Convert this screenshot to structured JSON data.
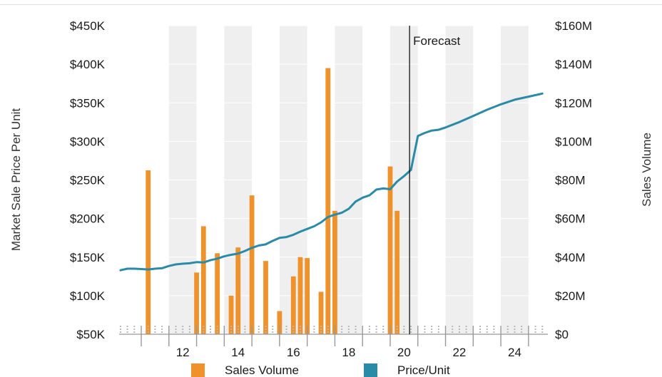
{
  "chart_data": {
    "type": "bar",
    "y_left_label": "Market Sale Price Per Unit",
    "y_right_label": "Sales Volume",
    "y_left_ticks": [
      "$50K",
      "$100K",
      "$150K",
      "$200K",
      "$250K",
      "$300K",
      "$350K",
      "$400K",
      "$450K"
    ],
    "y_left_tick_values": [
      50000,
      100000,
      150000,
      200000,
      250000,
      300000,
      350000,
      400000,
      450000
    ],
    "y_right_ticks": [
      "$0",
      "$20M",
      "$40M",
      "$60M",
      "$80M",
      "$100M",
      "$120M",
      "$140M",
      "$160M"
    ],
    "y_right_tick_values": [
      0,
      20000000,
      40000000,
      60000000,
      80000000,
      100000000,
      120000000,
      140000000,
      160000000
    ],
    "x_ticks": [
      "12",
      "14",
      "16",
      "18",
      "20",
      "22",
      "24"
    ],
    "x_tick_values": [
      2012,
      2014,
      2016,
      2018,
      2020,
      2022,
      2024
    ],
    "xlim": [
      2010.2,
      2025.7
    ],
    "ylim_left": [
      50000,
      450000
    ],
    "ylim_right": [
      0,
      160000000
    ],
    "forecast_label": "Forecast",
    "forecast_x": 2020.7,
    "colors": {
      "bars": "#F0922B",
      "line": "#2A8BA8",
      "band": "#EFEFEF",
      "axis": "#999999"
    },
    "legend": [
      {
        "label": "Sales Volume",
        "color": "#F0922B"
      },
      {
        "label": "Price/Unit",
        "color": "#2A8BA8"
      }
    ],
    "series": [
      {
        "name": "Sales Volume",
        "type": "bar",
        "axis": "right",
        "x": [
          2011.25,
          2013.0,
          2013.25,
          2013.75,
          2014.25,
          2014.5,
          2015.0,
          2015.5,
          2016.0,
          2016.5,
          2016.75,
          2017.0,
          2017.5,
          2017.75,
          2018.0,
          2020.0,
          2020.25
        ],
        "values": [
          85000000,
          32000000,
          56000000,
          42000000,
          20000000,
          45000000,
          72000000,
          38000000,
          12000000,
          30000000,
          40000000,
          39500000,
          22000000,
          138000000,
          64000000,
          87000000,
          64000000
        ]
      },
      {
        "name": "Price/Unit",
        "type": "line",
        "axis": "left",
        "x": [
          2010.25,
          2010.5,
          2010.75,
          2011.0,
          2011.25,
          2011.5,
          2011.75,
          2012.0,
          2012.25,
          2012.5,
          2012.75,
          2013.0,
          2013.25,
          2013.5,
          2013.75,
          2014.0,
          2014.25,
          2014.5,
          2014.75,
          2015.0,
          2015.25,
          2015.5,
          2015.75,
          2016.0,
          2016.25,
          2016.5,
          2016.75,
          2017.0,
          2017.25,
          2017.5,
          2017.75,
          2018.0,
          2018.25,
          2018.5,
          2018.75,
          2019.0,
          2019.25,
          2019.5,
          2019.75,
          2020.0,
          2020.25,
          2020.5,
          2020.75,
          2021.0,
          2021.25,
          2021.5,
          2021.75,
          2022.0,
          2022.5,
          2023.0,
          2023.5,
          2024.0,
          2024.5,
          2025.0,
          2025.5
        ],
        "values": [
          133000,
          135000,
          135000,
          134500,
          134000,
          135000,
          135500,
          138500,
          140500,
          141500,
          142000,
          143500,
          143000,
          146000,
          148000,
          151000,
          153000,
          154500,
          158000,
          162000,
          165000,
          166500,
          171000,
          175000,
          176000,
          179000,
          183000,
          186500,
          190000,
          195000,
          202000,
          205000,
          207500,
          212500,
          222000,
          227000,
          230000,
          237500,
          239000,
          238000,
          248000,
          255000,
          263000,
          307000,
          311000,
          314000,
          315000,
          318000,
          325000,
          333000,
          341000,
          348000,
          354000,
          358000,
          362000
        ]
      }
    ]
  }
}
